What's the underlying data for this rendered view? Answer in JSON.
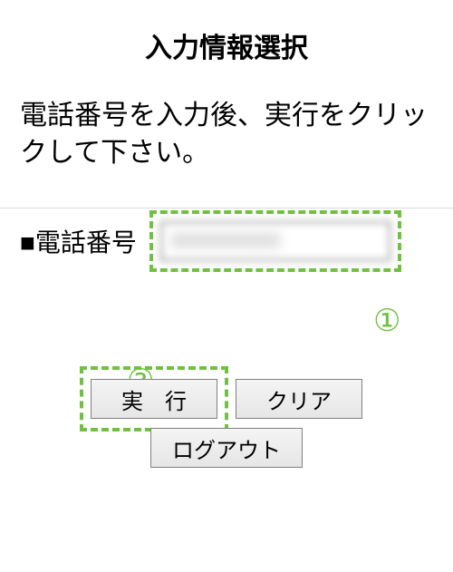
{
  "title": "入力情報選択",
  "instruction": "電話番号を入力後、実行をクリックして下さい。",
  "field": {
    "label": "■電話番号",
    "value": "0000000000"
  },
  "buttons": {
    "execute": "実　行",
    "clear": "クリア",
    "logout": "ログアウト"
  },
  "annotations": {
    "one": "①",
    "two": "②"
  },
  "colors": {
    "highlight": "#70c042",
    "button_border": "#808080",
    "text": "#000000"
  }
}
